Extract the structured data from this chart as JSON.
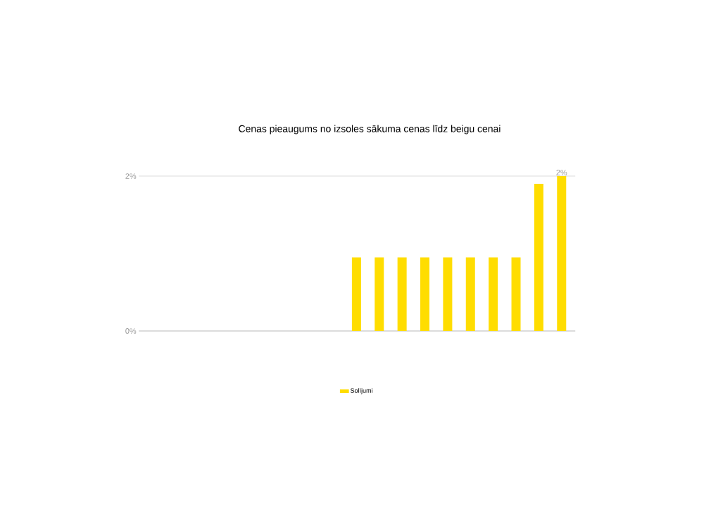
{
  "chart_data": {
    "type": "bar",
    "title": "Cenas pieaugums no izsoles sākuma cenas līdz beigu cenai",
    "categories": [
      null,
      null,
      null,
      null,
      null,
      null,
      null,
      null,
      null,
      null,
      null,
      null,
      null,
      null,
      null,
      null,
      null,
      null,
      null
    ],
    "series": [
      {
        "name": "Solījumi",
        "color": "#ffdd00",
        "values": [
          null,
          null,
          null,
          null,
          null,
          null,
          null,
          null,
          null,
          0.95,
          0.95,
          0.95,
          0.95,
          0.95,
          0.95,
          0.95,
          0.95,
          1.9,
          2.0
        ],
        "value_labels": [
          null,
          null,
          null,
          null,
          null,
          null,
          null,
          null,
          null,
          null,
          null,
          null,
          null,
          null,
          null,
          null,
          null,
          null,
          "2%"
        ]
      }
    ],
    "ylim": [
      0,
      2
    ],
    "yticks": [
      {
        "value": 0,
        "label": "0%"
      },
      {
        "value": 2,
        "label": "2%"
      }
    ],
    "grid": "y",
    "legend": "bottom"
  }
}
